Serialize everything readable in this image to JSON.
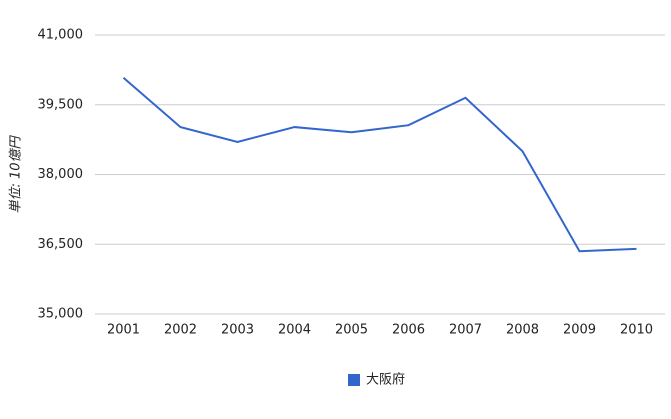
{
  "chart_data": {
    "type": "line",
    "y_label": "単位: 10億円",
    "categories": [
      "2001",
      "2002",
      "2003",
      "2004",
      "2005",
      "2006",
      "2007",
      "2008",
      "2009",
      "2010"
    ],
    "series": [
      {
        "name": "大阪府",
        "color": "#3366cc",
        "values": [
          40080,
          39020,
          38700,
          39020,
          38910,
          39060,
          39650,
          38500,
          36350,
          36400
        ]
      }
    ],
    "ylim": [
      35000,
      41000
    ],
    "yticks": [
      {
        "value": 35000,
        "label": "35,000"
      },
      {
        "value": 36500,
        "label": "36,500"
      },
      {
        "value": 38000,
        "label": "38,000"
      },
      {
        "value": 39500,
        "label": "39,500"
      },
      {
        "value": 41000,
        "label": "41,000"
      }
    ],
    "grid": true,
    "legend": "bottom"
  }
}
